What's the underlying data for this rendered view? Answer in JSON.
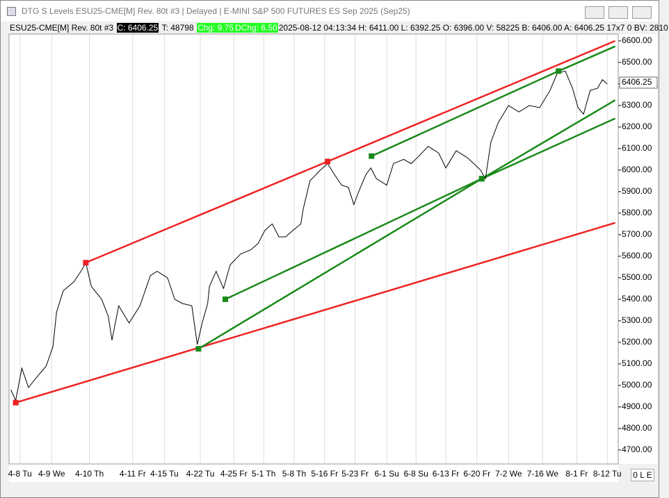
{
  "window": {
    "title": "DTG S Levels ESU25-CME[M]  Rev. 80t #3 | Delayed | E-MINI S&P 500 FUTURES ES Sep 2025 (Sep25)",
    "status": "0 L E"
  },
  "info": {
    "symbol": "ESU25-CME[M]  Rev. 80t #3",
    "close": "C: 6406.25",
    "ticks": "T: 48798",
    "chg": "Chg: 9.75",
    "dchg": "DChg: 6.50",
    "rest": "2025-08-12 04:13:34 H: 6411.00 L: 6392.25 O: 6396.00 V: 58225 B: 6406.00 A: 6406.25 17x7 0 BV: 2810"
  },
  "chart_data": {
    "type": "line",
    "last_price_label": "6406.25",
    "last_price": 6406.25,
    "xlim": [
      0,
      1000
    ],
    "ylim": [
      4635,
      6632
    ],
    "grid": "x",
    "xticks": [
      {
        "value": 18,
        "label": "4-8 Tu"
      },
      {
        "value": 70,
        "label": "4-9 We"
      },
      {
        "value": 132,
        "label": "4-10 Th"
      },
      {
        "value": 203,
        "label": "4-11 Fr"
      },
      {
        "value": 255,
        "label": "4-15 Tu"
      },
      {
        "value": 314,
        "label": "4-22 Tu"
      },
      {
        "value": 369,
        "label": "4-25 Fr"
      },
      {
        "value": 418,
        "label": "5-1 Th"
      },
      {
        "value": 468,
        "label": "5-8 Th"
      },
      {
        "value": 518,
        "label": "5-16 Fr"
      },
      {
        "value": 568,
        "label": "5-23 Fr"
      },
      {
        "value": 620,
        "label": "6-1 Su"
      },
      {
        "value": 668,
        "label": "6-8 Su"
      },
      {
        "value": 717,
        "label": "6-13 Fr"
      },
      {
        "value": 768,
        "label": "6-20 Fr"
      },
      {
        "value": 820,
        "label": "7-2 We"
      },
      {
        "value": 876,
        "label": "7-16 We"
      },
      {
        "value": 932,
        "label": "8-1 Fr"
      },
      {
        "value": 982,
        "label": "8-12 Tu"
      }
    ],
    "yticks": [
      {
        "value": 4700,
        "label": "4700.00"
      },
      {
        "value": 4800,
        "label": "4800.00"
      },
      {
        "value": 4900,
        "label": "4900.00"
      },
      {
        "value": 5000,
        "label": "5000.00"
      },
      {
        "value": 5100,
        "label": "5100.00"
      },
      {
        "value": 5200,
        "label": "5200.00"
      },
      {
        "value": 5300,
        "label": "5300.00"
      },
      {
        "value": 5400,
        "label": "5400.00"
      },
      {
        "value": 5500,
        "label": "5500.00"
      },
      {
        "value": 5600,
        "label": "5600.00"
      },
      {
        "value": 5700,
        "label": "5700.00"
      },
      {
        "value": 5800,
        "label": "5800.00"
      },
      {
        "value": 5900,
        "label": "5900.00"
      },
      {
        "value": 6000,
        "label": "6000.00"
      },
      {
        "value": 6100,
        "label": "6100.00"
      },
      {
        "value": 6200,
        "label": "6200.00"
      },
      {
        "value": 6300,
        "label": "6300.00"
      },
      {
        "value": 6400,
        "label": "6400.00"
      },
      {
        "value": 6500,
        "label": "6500.00"
      },
      {
        "value": 6600,
        "label": "6600.00"
      }
    ],
    "series": [
      {
        "color": "#000000",
        "x": [
          3,
          11,
          21,
          32,
          43,
          61,
          72,
          78,
          89,
          106,
          118,
          126,
          135,
          152,
          163,
          169,
          180,
          197,
          215,
          232,
          243,
          260,
          272,
          285,
          300,
          309,
          317,
          326,
          329,
          340,
          352,
          363,
          380,
          397,
          409,
          420,
          432,
          443,
          454,
          466,
          479,
          483,
          494,
          511,
          523,
          534,
          546,
          557,
          566,
          574,
          586,
          594,
          603,
          620,
          631,
          648,
          660,
          671,
          688,
          705,
          717,
          734,
          751,
          763,
          774,
          782,
          791,
          803,
          820,
          837,
          854,
          871,
          888,
          900,
          913,
          925,
          934,
          943,
          954,
          966,
          974,
          982
        ],
        "values": [
          4980,
          4930,
          5080,
          4990,
          5030,
          5090,
          5180,
          5340,
          5440,
          5480,
          5530,
          5570,
          5460,
          5400,
          5320,
          5210,
          5370,
          5290,
          5370,
          5510,
          5530,
          5500,
          5400,
          5380,
          5370,
          5190,
          5290,
          5380,
          5460,
          5530,
          5450,
          5560,
          5610,
          5630,
          5660,
          5720,
          5750,
          5690,
          5690,
          5720,
          5750,
          5820,
          5950,
          6000,
          6030,
          5980,
          5930,
          5920,
          5840,
          5900,
          5980,
          6010,
          5960,
          5930,
          6030,
          6050,
          6030,
          6060,
          6110,
          6080,
          6010,
          6090,
          6060,
          6030,
          6000,
          5960,
          6130,
          6220,
          6300,
          6270,
          6300,
          6290,
          6370,
          6450,
          6460,
          6380,
          6290,
          6260,
          6370,
          6380,
          6420,
          6400
        ]
      }
    ],
    "trendlines": [
      {
        "color": "#ee2222",
        "x": [
          11,
          995
        ],
        "values": [
          4920,
          5755
        ]
      },
      {
        "color": "#ee2222",
        "x": [
          126,
          523,
          995
        ],
        "values": [
          5570,
          6040,
          6600
        ]
      },
      {
        "color": "#1a8a1a",
        "x": [
          595,
          902,
          995
        ],
        "values": [
          6065,
          6460,
          6575
        ]
      },
      {
        "color": "#1a8a1a",
        "x": [
          355,
          776,
          995
        ],
        "values": [
          5400,
          5960,
          6240
        ]
      },
      {
        "color": "#1a8a1a",
        "x": [
          311,
          776,
          995
        ],
        "values": [
          5170,
          5960,
          6325
        ]
      }
    ]
  }
}
